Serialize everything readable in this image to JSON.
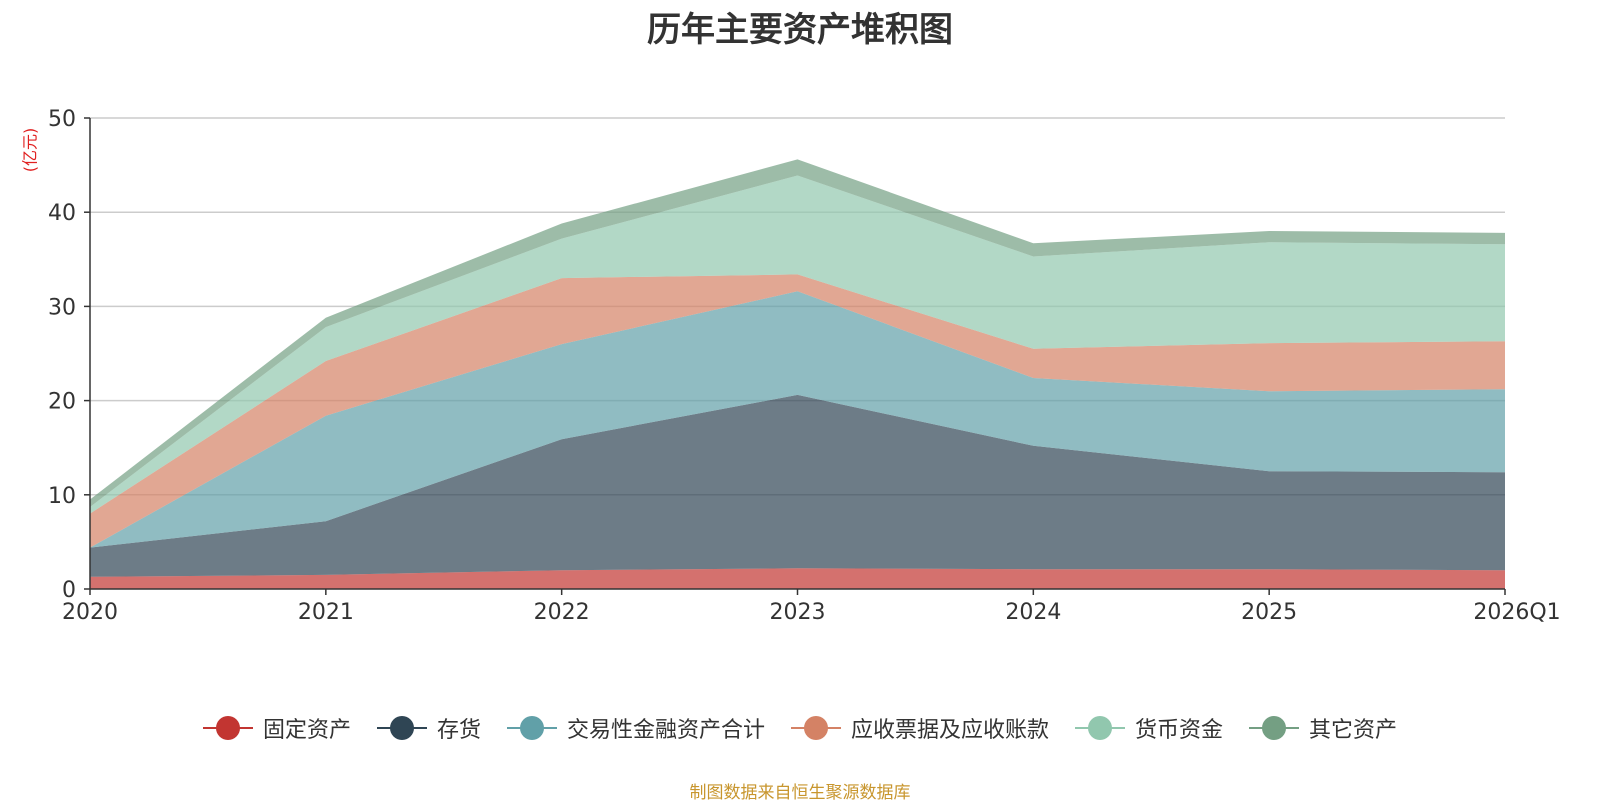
{
  "chart_data": {
    "type": "area",
    "stacked": true,
    "title": "历年主要资产堆积图",
    "ylabel": "(亿元)",
    "xlabel": "",
    "categories": [
      "2020",
      "2021",
      "2022",
      "2023",
      "2024",
      "2025",
      "2026Q1"
    ],
    "ylim": [
      0,
      50
    ],
    "yticks": [
      0,
      10,
      20,
      30,
      40,
      50
    ],
    "grid": true,
    "legend_position": "bottom",
    "series": [
      {
        "name": "固定资产",
        "color": "#c23531",
        "values": [
          1.3,
          1.5,
          2.0,
          2.2,
          2.1,
          2.1,
          2.0
        ]
      },
      {
        "name": "存货",
        "color": "#2f4554",
        "values": [
          3.1,
          5.7,
          13.9,
          18.4,
          13.1,
          10.4,
          10.4
        ]
      },
      {
        "name": "交易性金融资产合计",
        "color": "#61a0a8",
        "values": [
          0.0,
          11.2,
          10.1,
          11.0,
          7.2,
          8.5,
          8.8
        ]
      },
      {
        "name": "应收票据及应收账款",
        "color": "#d48265",
        "values": [
          3.6,
          5.8,
          7.0,
          1.8,
          3.1,
          5.1,
          5.1
        ]
      },
      {
        "name": "货币资金",
        "color": "#91c7ae",
        "values": [
          0.7,
          3.6,
          4.2,
          10.5,
          9.8,
          10.7,
          10.3
        ]
      },
      {
        "name": "其它资产",
        "color": "#749f83",
        "values": [
          0.8,
          1.0,
          1.6,
          1.7,
          1.4,
          1.2,
          1.2
        ]
      }
    ]
  },
  "footer": {
    "source": "制图数据来自恒生聚源数据库"
  }
}
